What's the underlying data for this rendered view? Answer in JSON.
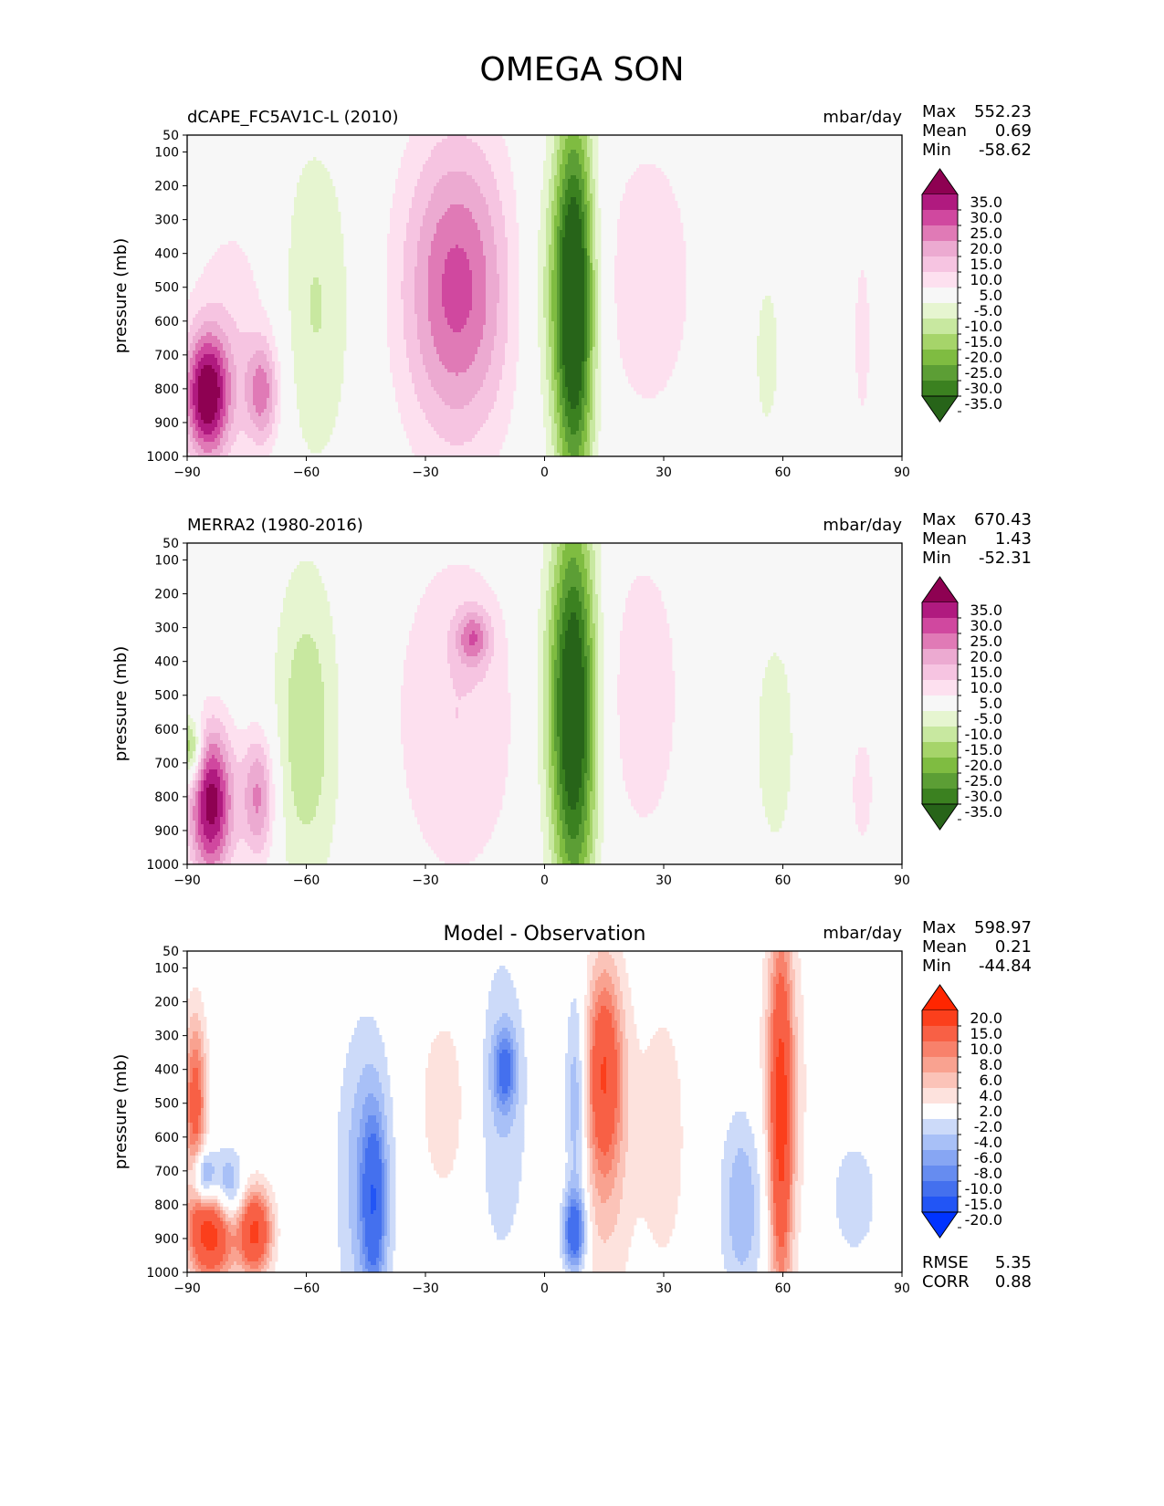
{
  "title": "OMEGA SON",
  "colors": {
    "background": "#f7f7f7",
    "omega_levels": [
      -35,
      -30,
      -25,
      -20,
      -15,
      -10,
      -5,
      5,
      10,
      15,
      20,
      25,
      30,
      35
    ],
    "omega_colors": [
      "#276419",
      "#3b8120",
      "#5c9e35",
      "#7fbc41",
      "#a6d46a",
      "#c8e8a0",
      "#e6f5d0",
      "#f7f7f7",
      "#fde0ef",
      "#f6c4e1",
      "#ecaad1",
      "#e07ab6",
      "#d0489f",
      "#b01a7f",
      "#8e0152"
    ],
    "diff_levels": [
      -20,
      -15,
      -10,
      -8,
      -6,
      -4,
      -2,
      2,
      4,
      6,
      8,
      10,
      15,
      20
    ],
    "diff_colors": [
      "#0033ff",
      "#2255f5",
      "#4470ee",
      "#668cf0",
      "#87a6f3",
      "#a8c0f7",
      "#ccdaf9",
      "#fefefe",
      "#fde2dd",
      "#fbc3b8",
      "#f9a290",
      "#f8816b",
      "#f86045",
      "#fb3f1c",
      "#ff2600"
    ]
  },
  "chart_data": [
    {
      "type": "heatmap",
      "title": "dCAPE_FC5AV1C-L (2010)",
      "units": "mbar/day",
      "ylabel": "pressure (mb)",
      "xlim": [
        -90,
        90
      ],
      "ylim": [
        1000,
        50
      ],
      "xticks": [
        -90,
        -60,
        -30,
        0,
        30,
        60,
        90
      ],
      "xtick_labels": [
        "−90",
        "−60",
        "−30",
        "0",
        "30",
        "60",
        "90"
      ],
      "yticks": [
        50,
        100,
        200,
        300,
        400,
        500,
        600,
        700,
        800,
        900,
        1000
      ],
      "stats": [
        {
          "label": "Max",
          "value": "552.23"
        },
        {
          "label": "Mean",
          "value": "0.69"
        },
        {
          "label": "Min",
          "value": "-58.62"
        }
      ],
      "colorbar_labels": [
        "35.0",
        "30.0",
        "25.0",
        "20.0",
        "15.0",
        "10.0",
        "5.0",
        "-5.0",
        "-10.0",
        "-15.0",
        "-20.0",
        "-25.0",
        "-30.0",
        "-35.0"
      ],
      "features": [
        {
          "lat": 7.5,
          "p": 560,
          "dlat": 3.5,
          "dp": 420,
          "value": -42
        },
        {
          "lat": 3,
          "p": 500,
          "dlat": 6,
          "dp": 300,
          "value": -10
        },
        {
          "lat": -22,
          "p": 500,
          "dlat": 9,
          "dp": 310,
          "value": 18
        },
        {
          "lat": -22,
          "p": 520,
          "dlat": 12,
          "dp": 360,
          "value": 9
        },
        {
          "lat": 26,
          "p": 480,
          "dlat": 9,
          "dp": 320,
          "value": 9
        },
        {
          "lat": -58,
          "p": 560,
          "dlat": 7,
          "dp": 360,
          "value": -11
        },
        {
          "lat": -85,
          "p": 820,
          "dlat": 4,
          "dp": 130,
          "value": 38
        },
        {
          "lat": -78,
          "p": 650,
          "dlat": 9,
          "dp": 300,
          "value": 8
        },
        {
          "lat": -71,
          "p": 810,
          "dlat": 3,
          "dp": 110,
          "value": 20
        },
        {
          "lat": 56,
          "p": 700,
          "dlat": 4,
          "dp": 300,
          "value": -6
        },
        {
          "lat": 80,
          "p": 650,
          "dlat": 2,
          "dp": 240,
          "value": 7
        }
      ]
    },
    {
      "type": "heatmap",
      "title": "MERRA2 (1980-2016)",
      "units": "mbar/day",
      "ylabel": "pressure (mb)",
      "xlim": [
        -90,
        90
      ],
      "ylim": [
        1000,
        50
      ],
      "xticks": [
        -90,
        -60,
        -30,
        0,
        30,
        60,
        90
      ],
      "xtick_labels": [
        "−90",
        "−60",
        "−30",
        "0",
        "30",
        "60",
        "90"
      ],
      "yticks": [
        50,
        100,
        200,
        300,
        400,
        500,
        600,
        700,
        800,
        900,
        1000
      ],
      "stats": [
        {
          "label": "Max",
          "value": "670.43"
        },
        {
          "label": "Mean",
          "value": "1.43"
        },
        {
          "label": "Min",
          "value": "-52.31"
        }
      ],
      "colorbar_labels": [
        "35.0",
        "30.0",
        "25.0",
        "20.0",
        "15.0",
        "10.0",
        "5.0",
        "-5.0",
        "-10.0",
        "-15.0",
        "-20.0",
        "-25.0",
        "-30.0",
        "-35.0"
      ],
      "features": [
        {
          "lat": 7.5,
          "p": 560,
          "dlat": 4,
          "dp": 440,
          "value": -40
        },
        {
          "lat": 3,
          "p": 500,
          "dlat": 5,
          "dp": 320,
          "value": -8
        },
        {
          "lat": -22,
          "p": 560,
          "dlat": 12,
          "dp": 380,
          "value": 10
        },
        {
          "lat": -18,
          "p": 330,
          "dlat": 3,
          "dp": 60,
          "value": 18
        },
        {
          "lat": 25,
          "p": 500,
          "dlat": 7,
          "dp": 330,
          "value": 9
        },
        {
          "lat": -60,
          "p": 600,
          "dlat": 6,
          "dp": 350,
          "value": -14
        },
        {
          "lat": -84,
          "p": 820,
          "dlat": 4,
          "dp": 160,
          "value": 38
        },
        {
          "lat": -72,
          "p": 800,
          "dlat": 3,
          "dp": 140,
          "value": 22
        },
        {
          "lat": -89,
          "p": 660,
          "dlat": 2,
          "dp": 70,
          "value": -25
        },
        {
          "lat": 58,
          "p": 640,
          "dlat": 5,
          "dp": 320,
          "value": -7
        },
        {
          "lat": 80,
          "p": 780,
          "dlat": 2,
          "dp": 120,
          "value": 9
        }
      ]
    },
    {
      "type": "heatmap",
      "title": "Model - Observation",
      "units": "mbar/day",
      "ylabel": "pressure (mb)",
      "xlim": [
        -90,
        90
      ],
      "ylim": [
        1000,
        50
      ],
      "xticks": [
        -90,
        -60,
        -30,
        0,
        30,
        60,
        90
      ],
      "xtick_labels": [
        "−90",
        "−60",
        "−30",
        "0",
        "30",
        "60",
        "90"
      ],
      "yticks": [
        50,
        100,
        200,
        300,
        400,
        500,
        600,
        700,
        800,
        900,
        1000
      ],
      "stats": [
        {
          "label": "Max",
          "value": "598.97"
        },
        {
          "label": "Mean",
          "value": "0.21"
        },
        {
          "label": "Min",
          "value": "-44.84"
        }
      ],
      "metrics": [
        {
          "label": "RMSE",
          "value": "5.35"
        },
        {
          "label": "CORR",
          "value": "0.88"
        }
      ],
      "colorbar_labels": [
        "20.0",
        "15.0",
        "10.0",
        "8.0",
        "6.0",
        "4.0",
        "2.0",
        "-2.0",
        "-4.0",
        "-6.0",
        "-8.0",
        "-10.0",
        "-15.0",
        "-20.0"
      ],
      "features": [
        {
          "lat": 59.5,
          "p": 550,
          "dlat": 2,
          "dp": 380,
          "value": 14
        },
        {
          "lat": 60,
          "p": 450,
          "dlat": 4.5,
          "dp": 380,
          "value": 4
        },
        {
          "lat": 15,
          "p": 400,
          "dlat": 3,
          "dp": 200,
          "value": 11
        },
        {
          "lat": 15,
          "p": 600,
          "dlat": 5,
          "dp": 380,
          "value": 5
        },
        {
          "lat": 7.5,
          "p": 880,
          "dlat": 2,
          "dp": 80,
          "value": -13
        },
        {
          "lat": 8,
          "p": 500,
          "dlat": 2,
          "dp": 250,
          "value": -7
        },
        {
          "lat": -11,
          "p": 500,
          "dlat": 5,
          "dp": 350,
          "value": -4
        },
        {
          "lat": -10,
          "p": 400,
          "dlat": 2,
          "dp": 80,
          "value": -9
        },
        {
          "lat": -45,
          "p": 720,
          "dlat": 5,
          "dp": 320,
          "value": -6
        },
        {
          "lat": -43,
          "p": 800,
          "dlat": 2,
          "dp": 180,
          "value": -10
        },
        {
          "lat": 50,
          "p": 800,
          "dlat": 4,
          "dp": 200,
          "value": -6
        },
        {
          "lat": -84,
          "p": 880,
          "dlat": 4,
          "dp": 100,
          "value": 18
        },
        {
          "lat": -73,
          "p": 880,
          "dlat": 3,
          "dp": 90,
          "value": 16
        },
        {
          "lat": -86,
          "p": 720,
          "dlat": 2,
          "dp": 60,
          "value": -11
        },
        {
          "lat": -80,
          "p": 760,
          "dlat": 3,
          "dp": 80,
          "value": -9
        },
        {
          "lat": -88,
          "p": 500,
          "dlat": 2,
          "dp": 180,
          "value": 12
        },
        {
          "lat": -25,
          "p": 500,
          "dlat": 6,
          "dp": 250,
          "value": 3
        },
        {
          "lat": 30,
          "p": 600,
          "dlat": 5,
          "dp": 350,
          "value": 3
        },
        {
          "lat": 78,
          "p": 780,
          "dlat": 4,
          "dp": 120,
          "value": -4
        }
      ]
    }
  ]
}
